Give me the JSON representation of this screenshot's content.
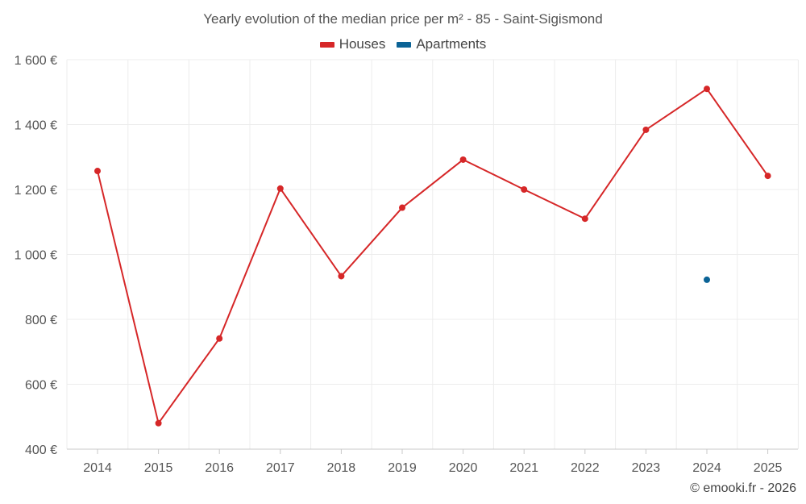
{
  "chart_data": {
    "type": "line",
    "title": "Yearly evolution of the median price per m² - 85 - Saint-Sigismond",
    "categories": [
      "2014",
      "2015",
      "2016",
      "2017",
      "2018",
      "2019",
      "2020",
      "2021",
      "2022",
      "2023",
      "2024",
      "2025"
    ],
    "ylim": [
      400,
      1600
    ],
    "yticks": [
      400,
      600,
      800,
      1000,
      1200,
      1400,
      1600
    ],
    "ytick_labels": [
      "400 €",
      "600 €",
      "800 €",
      "1 000 €",
      "1 200 €",
      "1 400 €",
      "1 600 €"
    ],
    "grid": true,
    "legend_position": "top-center",
    "series": [
      {
        "name": "Houses",
        "color": "#d62728",
        "values": [
          1257,
          480,
          741,
          1203,
          933,
          1144,
          1292,
          1200,
          1110,
          1384,
          1510,
          1242
        ]
      },
      {
        "name": "Apartments",
        "color": "#0b6396",
        "values": [
          null,
          null,
          null,
          null,
          null,
          null,
          null,
          null,
          null,
          null,
          922,
          null
        ]
      }
    ]
  },
  "credit": "© emooki.fr - 2026"
}
